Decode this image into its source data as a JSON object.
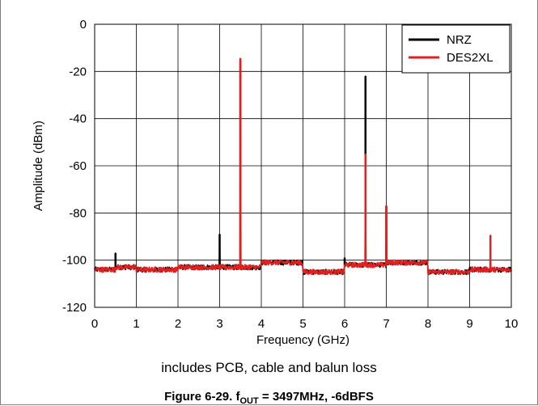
{
  "chart_data": {
    "type": "line",
    "title": "",
    "xlabel": "Frequency (GHz)",
    "ylabel": "Amplitude (dBm)",
    "xlim": [
      0,
      10
    ],
    "ylim": [
      -120,
      0
    ],
    "xticks": [
      0,
      1,
      2,
      3,
      4,
      5,
      6,
      7,
      8,
      9,
      10
    ],
    "yticks": [
      0,
      -20,
      -40,
      -60,
      -80,
      -100,
      -120
    ],
    "grid": true,
    "legend_position": "top-right",
    "noise_floor": [
      {
        "from": 0,
        "to": 0.5,
        "level": -104
      },
      {
        "from": 0.5,
        "to": 1,
        "level": -103
      },
      {
        "from": 1,
        "to": 2,
        "level": -104
      },
      {
        "from": 2,
        "to": 3,
        "level": -103
      },
      {
        "from": 3,
        "to": 4,
        "level": -103
      },
      {
        "from": 4,
        "to": 5,
        "level": -101
      },
      {
        "from": 5,
        "to": 6,
        "level": -105
      },
      {
        "from": 6,
        "to": 7,
        "level": -102
      },
      {
        "from": 7,
        "to": 8,
        "level": -101
      },
      {
        "from": 8,
        "to": 9,
        "level": -105
      },
      {
        "from": 9,
        "to": 10,
        "level": -104
      }
    ],
    "series": [
      {
        "name": "NRZ",
        "color": "#000000",
        "peaks": [
          {
            "x": 0.5,
            "y": -97
          },
          {
            "x": 3.0,
            "y": -89
          },
          {
            "x": 3.497,
            "y": -15
          },
          {
            "x": 6.0,
            "y": -99
          },
          {
            "x": 6.5,
            "y": -22
          },
          {
            "x": 7.0,
            "y": -77
          }
        ]
      },
      {
        "name": "DES2XL",
        "color": "#e32020",
        "peaks": [
          {
            "x": 3.497,
            "y": -14.5
          },
          {
            "x": 6.5,
            "y": -55
          },
          {
            "x": 7.0,
            "y": -77
          },
          {
            "x": 9.5,
            "y": -89.5
          }
        ]
      }
    ]
  },
  "note": "includes PCB, cable and balun loss",
  "caption": {
    "prefix": "Figure 6-29. f",
    "subscript": "OUT",
    "suffix": " = 3497MHz, -6dBFS"
  }
}
